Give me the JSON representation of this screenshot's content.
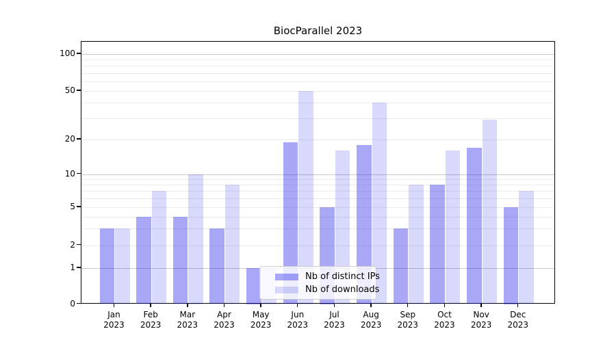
{
  "title": "BiocParallel 2023",
  "colors": {
    "ips_bar": "rgba(0,0,230,0.34)",
    "downloads_bar": "rgba(0,0,230,0.15)",
    "grid_major": "#c8c8c8",
    "grid_minor": "#ebebeb",
    "spine": "#000000",
    "legend_border": "#cccccc",
    "legend_bg": "rgba(255,255,255,0.8)",
    "text": "#000000"
  },
  "chart_data": {
    "type": "bar",
    "title": "BiocParallel 2023",
    "categories": [
      "Jan 2023",
      "Feb 2023",
      "Mar 2023",
      "Apr 2023",
      "May 2023",
      "Jun 2023",
      "Jul 2023",
      "Aug 2023",
      "Sep 2023",
      "Oct 2023",
      "Nov 2023",
      "Dec 2023"
    ],
    "series": [
      {
        "name": "Nb of distinct IPs",
        "values": [
          3,
          4,
          4,
          3,
          1,
          19,
          5,
          18,
          3,
          8,
          17,
          5
        ]
      },
      {
        "name": "Nb of downloads",
        "values": [
          3,
          7,
          10,
          8,
          1,
          50,
          16,
          40,
          8,
          16,
          29,
          7
        ]
      }
    ],
    "xlabel": "",
    "ylabel": "",
    "yscale": "log-like (0 baseline, log above 1)",
    "y_ticks": [
      0,
      1,
      2,
      5,
      10,
      20,
      50,
      100
    ],
    "y_minor_ticks": [
      3,
      4,
      6,
      7,
      8,
      9,
      30,
      40,
      60,
      70,
      80,
      90
    ],
    "ylim": [
      0,
      140
    ],
    "grid": true,
    "legend_position": "lower center (inside plot)"
  }
}
